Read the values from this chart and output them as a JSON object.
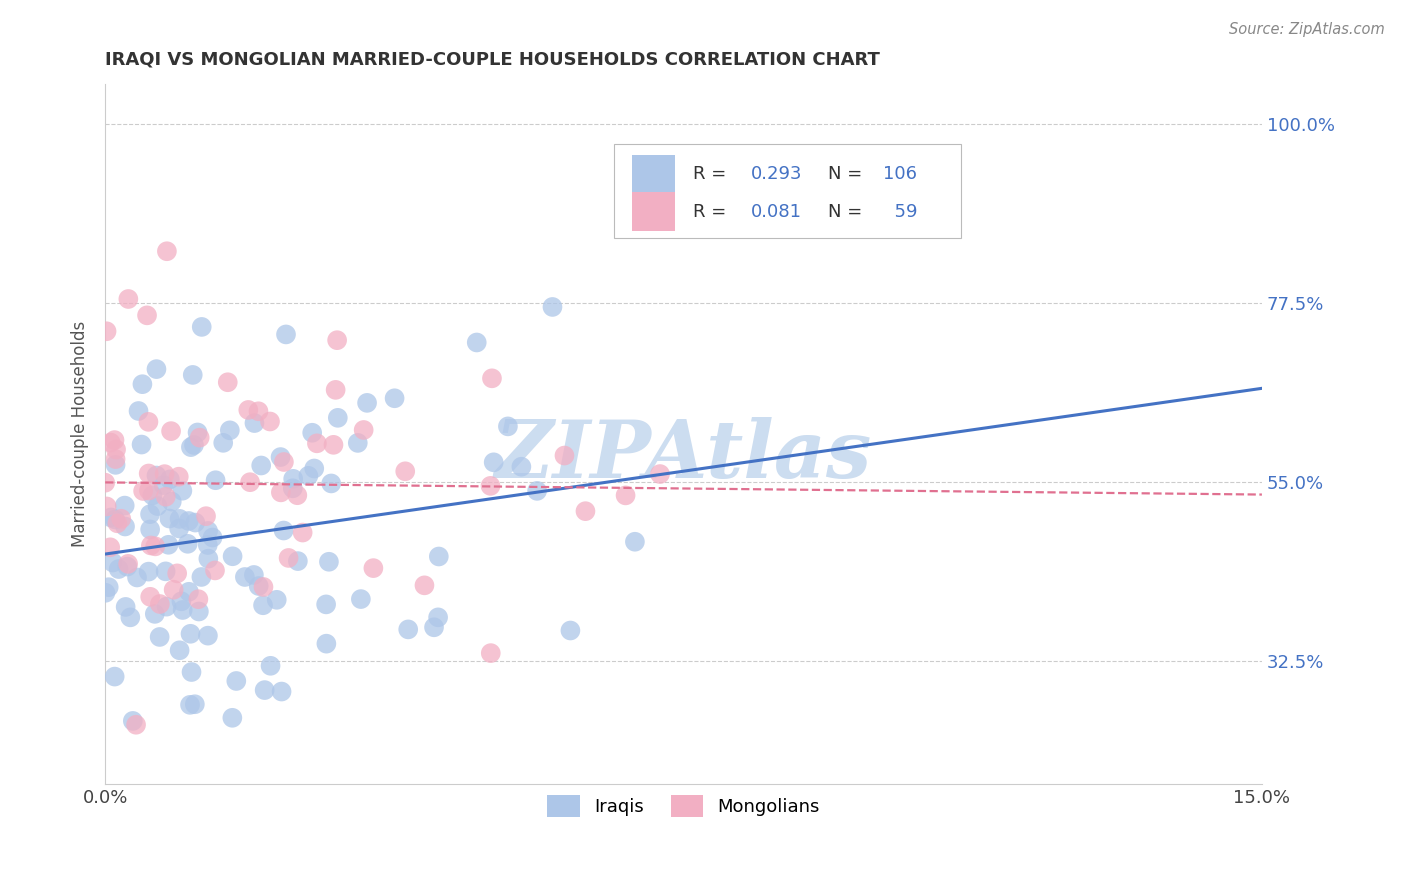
{
  "title": "IRAQI VS MONGOLIAN MARRIED-COUPLE HOUSEHOLDS CORRELATION CHART",
  "source": "Source: ZipAtlas.com",
  "ylabel": "Married-couple Households",
  "xlim": [
    0.0,
    0.15
  ],
  "ylim": [
    0.17,
    1.05
  ],
  "xtick_positions": [
    0.0,
    0.05,
    0.1,
    0.15
  ],
  "xticklabels": [
    "0.0%",
    "",
    "",
    "15.0%"
  ],
  "ytick_positions": [
    0.325,
    0.55,
    0.775,
    1.0
  ],
  "ytick_labels": [
    "32.5%",
    "55.0%",
    "77.5%",
    "100.0%"
  ],
  "iraqi_R": 0.293,
  "iraqi_N": 106,
  "mongolian_R": 0.081,
  "mongolian_N": 59,
  "iraqi_color": "#adc6e8",
  "mongolian_color": "#f2afc3",
  "iraqi_line_color": "#4472c4",
  "mongolian_line_color": "#e07090",
  "watermark": "ZIPAtlas",
  "watermark_color": "#ccddf0",
  "background_color": "#ffffff",
  "grid_color": "#cccccc",
  "legend_color": "#4472c4",
  "title_color": "#333333",
  "source_color": "#888888",
  "ylabel_color": "#555555"
}
